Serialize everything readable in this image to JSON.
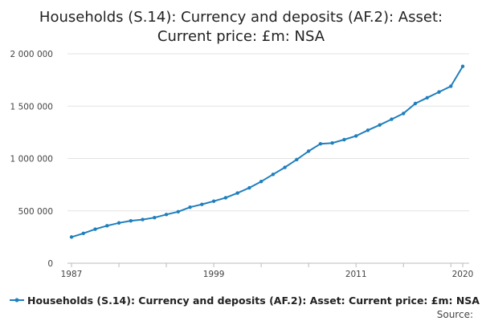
{
  "chart_data": {
    "type": "line",
    "title_lines": [
      "Households (S.14): Currency and deposits (AF.2): Asset:",
      "Current price: £m: NSA"
    ],
    "xlabel": "",
    "ylabel": "",
    "x_tick_labels": [
      "1987",
      "1999",
      "2011",
      "2020"
    ],
    "y_tick_labels": [
      "0",
      "500 000",
      "1 000 000",
      "1 500 000",
      "2 000 000"
    ],
    "y_ticks": [
      0,
      500000,
      1000000,
      1500000,
      2000000
    ],
    "xlim": [
      1987,
      2020
    ],
    "ylim": [
      0,
      2000000
    ],
    "grid": "horizontal",
    "legend_position": "bottom",
    "source_label": "Source:",
    "series": [
      {
        "name": "Households (S.14): Currency and deposits (AF.2): Asset: Current price: £m: NSA",
        "color": "#1f7fbd",
        "x": [
          1987,
          1988,
          1989,
          1990,
          1991,
          1992,
          1993,
          1994,
          1995,
          1996,
          1997,
          1998,
          1999,
          2000,
          2001,
          2002,
          2003,
          2004,
          2005,
          2006,
          2007,
          2008,
          2009,
          2010,
          2011,
          2012,
          2013,
          2014,
          2015,
          2016,
          2017,
          2018,
          2019,
          2020
        ],
        "values": [
          250000,
          285000,
          325000,
          358000,
          385000,
          405000,
          417000,
          435000,
          465000,
          492000,
          535000,
          562000,
          592000,
          625000,
          670000,
          720000,
          780000,
          848000,
          915000,
          990000,
          1070000,
          1140000,
          1148000,
          1180000,
          1215000,
          1270000,
          1320000,
          1375000,
          1430000,
          1525000,
          1580000,
          1635000,
          1690000,
          1880000
        ]
      }
    ]
  }
}
